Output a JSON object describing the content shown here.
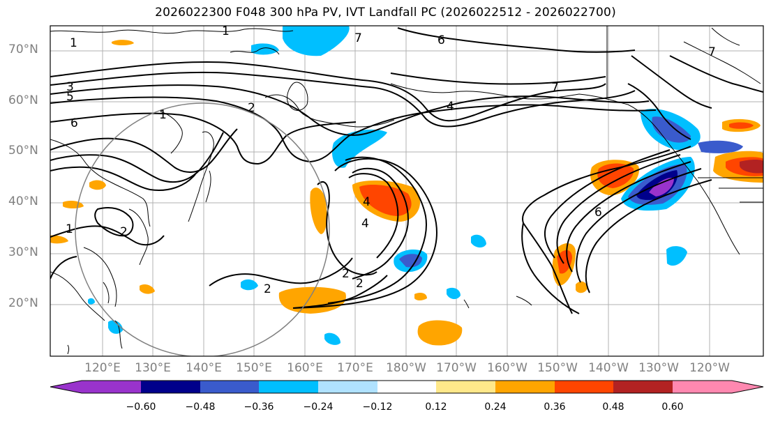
{
  "title": "2026022300 F048 300 hPa PV, IVT Landfall PC (2026022512 - 2026022700)",
  "lat_labels": [
    "70°N",
    "60°N",
    "50°N",
    "40°N",
    "30°N",
    "20°N"
  ],
  "lon_labels": [
    "120°E",
    "130°E",
    "140°E",
    "150°E",
    "160°E",
    "170°E",
    "180°W",
    "170°W",
    "160°W",
    "150°W",
    "140°W",
    "130°W",
    "120°W"
  ],
  "contour_labels": [
    "1",
    "1",
    "1",
    "1",
    "2",
    "2",
    "2",
    "2",
    "3",
    "4",
    "4",
    "4",
    "5",
    "6",
    "6",
    "6",
    "7",
    "7",
    "7",
    "2"
  ],
  "colorbar": {
    "ticks": [
      "−0.60",
      "−0.48",
      "−0.36",
      "−0.24",
      "−0.12",
      "0.12",
      "0.24",
      "0.36",
      "0.48",
      "0.60"
    ],
    "colors": [
      "#9933cc",
      "#00008b",
      "#3a5bcc",
      "#00bfff",
      "#b0e2ff",
      "#ffffff",
      "#ffe88a",
      "#ffa500",
      "#ff4500",
      "#b22222",
      "#ff88b0"
    ]
  }
}
